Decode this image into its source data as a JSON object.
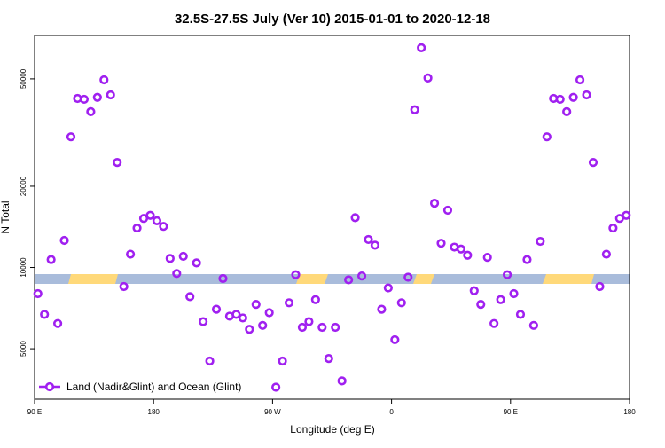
{
  "chart_data": {
    "type": "scatter",
    "title": "32.5S-27.5S July (Ver 10)   2015-01-01 to 2020-12-18",
    "x_label": "Longitude (deg E)",
    "y_label": "N Total",
    "x": [
      92.5,
      97.5,
      102.5,
      107.5,
      112.5,
      117.5,
      122.5,
      127.5,
      132.5,
      137.5,
      142.5,
      147.5,
      152.5,
      157.5,
      162.5,
      167.5,
      172.5,
      177.5,
      182.5,
      187.5,
      192.5,
      197.5,
      202.5,
      207.5,
      212.5,
      217.5,
      222.5,
      227.5,
      232.5,
      237.5,
      242.5,
      247.5,
      252.5,
      257.5,
      262.5,
      267.5,
      272.5,
      277.5,
      282.5,
      287.5,
      292.5,
      297.5,
      302.5,
      307.5,
      312.5,
      317.5,
      322.5,
      327.5,
      332.5,
      337.5,
      342.5,
      347.5,
      352.5,
      357.5,
      362.5,
      367.5,
      372.5,
      377.5,
      382.5,
      387.5,
      392.5,
      397.5,
      402.5,
      407.5,
      412.5,
      417.5,
      422.5,
      427.5,
      432.5,
      437.5,
      442.5,
      447.5,
      452.5,
      457.5,
      462.5,
      467.5,
      472.5,
      477.5,
      482.5,
      487.5,
      492.5,
      497.5,
      502.5,
      507.5,
      512.5,
      517.5,
      522.5,
      527.5,
      532.5,
      537.5
    ],
    "series": [
      {
        "name": "Land (Nadir&Glint) and Ocean (Glint)",
        "color": "#a020f0",
        "values": [
          8000,
          6700,
          10700,
          6200,
          12600,
          30500,
          42300,
          42000,
          37800,
          42700,
          49600,
          43600,
          24500,
          8500,
          11200,
          14000,
          15200,
          15600,
          14900,
          14200,
          10800,
          9500,
          11000,
          7800,
          10400,
          6300,
          4500,
          7000,
          9100,
          6600,
          6700,
          6500,
          5900,
          7300,
          6100,
          6800,
          3600,
          4500,
          7400,
          9400,
          6000,
          6300,
          7600,
          6000,
          4600,
          6000,
          3800,
          9000,
          15300,
          9300,
          12700,
          12100,
          7000,
          8400,
          5400,
          7400,
          9200,
          38400,
          65200,
          50400,
          17300,
          12300,
          16300,
          11900,
          11700,
          11100,
          8200,
          7300,
          10900,
          6200,
          7600,
          9400,
          8000,
          6700,
          10700,
          6100,
          12500,
          30500,
          42300,
          42000,
          37800,
          42700,
          49600,
          43600,
          24500,
          8500,
          11200,
          14000,
          15200,
          15600
        ]
      }
    ],
    "xlim": [
      90,
      540
    ],
    "xticks": [
      {
        "value": 90,
        "label": "90 E"
      },
      180,
      {
        "value": 270,
        "label": "90 W"
      },
      {
        "value": 360,
        "label": "0"
      },
      {
        "value": 450,
        "label": "90 E"
      },
      {
        "value": 540,
        "label": "180"
      }
    ],
    "ylim": [
      3250,
      72400
    ],
    "yticks": [
      5000,
      10000,
      20000,
      50000
    ],
    "log_y": true,
    "legend": "bottom-left"
  }
}
